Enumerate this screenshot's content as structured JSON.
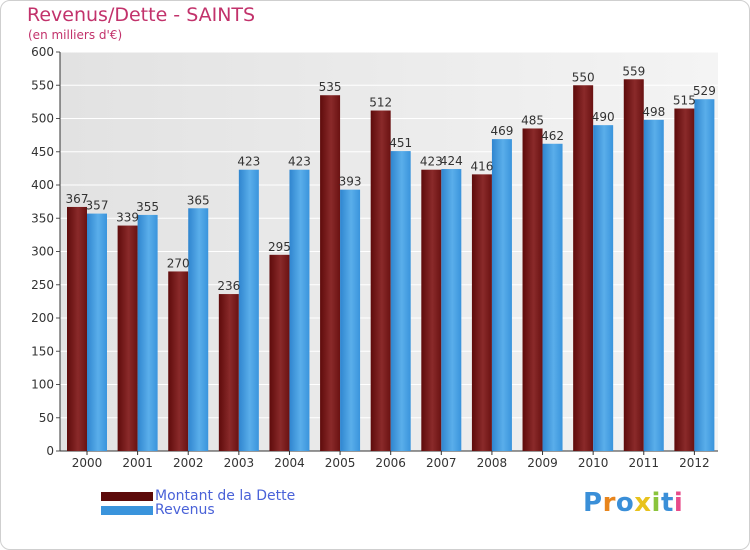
{
  "chart_data": {
    "type": "bar",
    "title": "Revenus/Dette - SAINTS",
    "subtitle": "(en milliers d'€)",
    "categories": [
      "2000",
      "2001",
      "2002",
      "2003",
      "2004",
      "2005",
      "2006",
      "2007",
      "2008",
      "2009",
      "2010",
      "2011",
      "2012"
    ],
    "series": [
      {
        "name": "Montant de la Dette",
        "color": "#7a1616",
        "values": [
          367,
          339,
          270,
          236,
          295,
          535,
          512,
          423,
          416,
          485,
          550,
          559,
          515
        ]
      },
      {
        "name": "Revenus",
        "color": "#3a94dc",
        "values": [
          357,
          355,
          365,
          423,
          423,
          393,
          451,
          424,
          469,
          462,
          490,
          498,
          529
        ]
      }
    ],
    "ylim": [
      0,
      600
    ],
    "yticks": [
      0,
      50,
      100,
      150,
      200,
      250,
      300,
      350,
      400,
      450,
      500,
      550,
      600
    ],
    "grid": true,
    "legend_position": "bottom-left",
    "background_color": "#eeeeee",
    "gridline_color": "#ffffff"
  },
  "brand": {
    "letters": [
      "P",
      "r",
      "o",
      "x",
      "i",
      "t",
      "i"
    ],
    "colors": [
      "#3a8fd8",
      "#e8851c",
      "#3a8fd8",
      "#e8c21c",
      "#8ac43c",
      "#3a8fd8",
      "#e84b8a"
    ]
  }
}
